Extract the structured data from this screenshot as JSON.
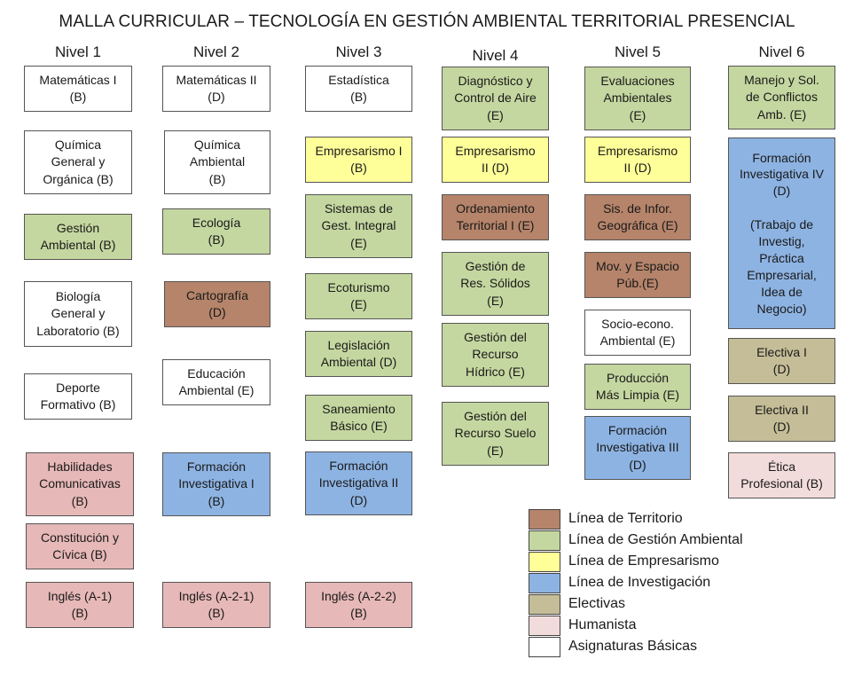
{
  "title": "MALLA CURRICULAR – TECNOLOGÍA EN GESTIÓN AMBIENTAL TERRITORIAL PRESENCIAL",
  "colors": {
    "territorio": "#b5846a",
    "gestion_ambiental": "#c4d7a0",
    "empresarismo": "#ffff99",
    "investigacion": "#8db3e2",
    "electivas": "#c4bd97",
    "humanista": "#e6b8b7",
    "humanista_light": "#f2dcdb",
    "basicas": "#ffffff"
  },
  "levels": [
    "Nivel 1",
    "Nivel 2",
    "Nivel 3",
    "Nivel 4",
    "Nivel 5",
    "Nivel 6"
  ],
  "courses": {
    "n1": [
      "Matemáticas I\n(B)",
      "Química\nGeneral y\nOrgánica  (B)",
      "Gestión\nAmbiental (B)",
      "Biología\nGeneral y\nLaboratorio (B)",
      "Deporte\nFormativo (B)",
      "Habilidades\nComunicativas\n(B)",
      "Constitución y\nCívica (B)",
      "Inglés (A-1)\n(B)"
    ],
    "n2": [
      "Matemáticas II\n(D)",
      "Química\nAmbiental\n(B)",
      "Ecología\n(B)",
      "Cartografía\n(D)",
      "Educación\nAmbiental (E)",
      "Formación\nInvestigativa I\n(B)",
      "Inglés (A-2-1)\n(B)"
    ],
    "n3": [
      "Estadística\n(B)",
      "Empresarismo I\n(B)",
      "Sistemas de\nGest. Integral\n(E)",
      "Ecoturismo\n(E)",
      "Legislación\nAmbiental (D)",
      "Saneamiento\nBásico (E)",
      "Formación\nInvestigativa II\n(D)",
      "Inglés (A-2-2)\n(B)"
    ],
    "n4": [
      "Diagnóstico y\nControl de Aire\n(E)",
      "Empresarismo\nII  (D)",
      "Ordenamiento\nTerritorial I (E)",
      "Gestión de\nRes. Sólidos\n(E)",
      "Gestión del\nRecurso\nHídrico (E)",
      "Gestión del\nRecurso Suelo\n(E)"
    ],
    "n5": [
      "Evaluaciones\nAmbientales\n(E)",
      "Empresarismo\nII  (D)",
      "Sis. de Infor.\nGeográfica (E)",
      "Mov. y Espacio\nPúb.(E)",
      "Socio-econo.\nAmbiental (E)",
      "Producción\nMás Limpia (E)",
      "Formación\nInvestigativa III\n(D)"
    ],
    "n6": [
      "Manejo y Sol.\nde Conflictos\nAmb. (E)",
      "Formación\nInvestigativa IV\n(D)\n\n(Trabajo de\nInvestig,\nPráctica\nEmpresarial,\nIdea de\nNegocio)",
      "Electiva I\n(D)",
      "Electiva II\n(D)",
      "Ética\nProfesional (B)"
    ]
  },
  "legend": [
    "Línea de Territorio",
    "Línea de Gestión Ambiental",
    "Línea de Empresarismo",
    "Línea de Investigación",
    "Electivas",
    "Humanista",
    "Asignaturas Básicas"
  ]
}
